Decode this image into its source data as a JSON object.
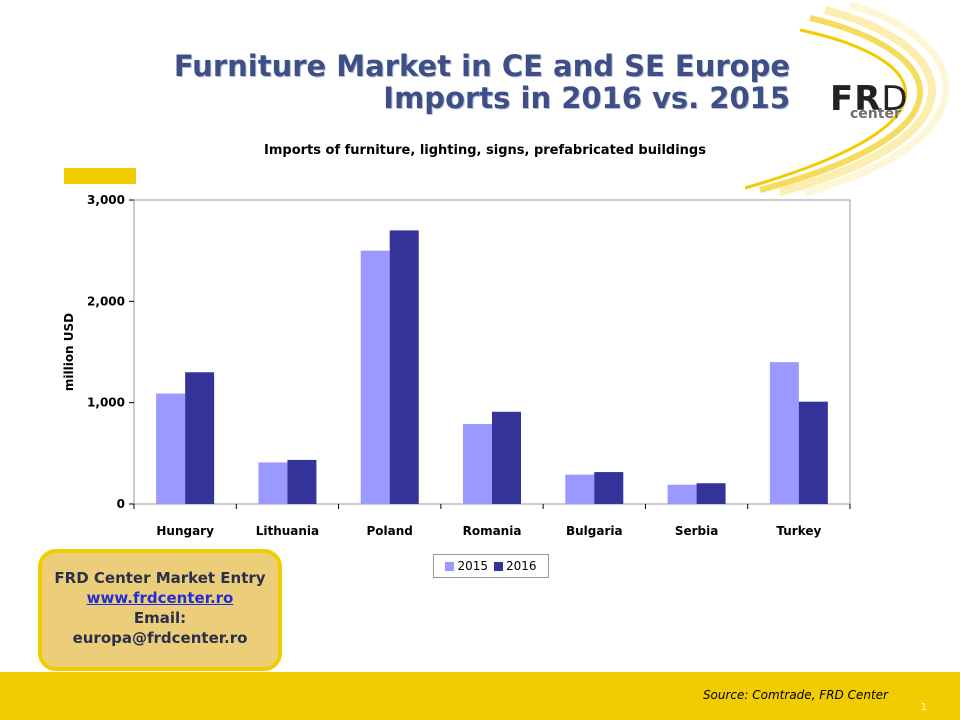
{
  "slide": {
    "title_line1": "Furniture Market in CE and SE Europe",
    "title_line2": "Imports in 2016 vs. 2015",
    "logo_text_f": "F",
    "logo_text_r": "R",
    "logo_text_d": "D",
    "logo_sub": "center",
    "page_number": "1"
  },
  "contact": {
    "company": "FRD Center Market Entry",
    "website": "www.frdcenter.ro",
    "email_label": "Email:",
    "email": "europa@frdcenter.ro"
  },
  "footer": {
    "source": "Source: Comtrade, FRD Center"
  },
  "colors": {
    "series_2015": "#9999ff",
    "series_2016": "#333399",
    "accent": "#f2cc00",
    "title": "#3d4f86"
  },
  "chart_data": {
    "type": "bar",
    "title": "Imports of furniture, lighting, signs, prefabricated buildings",
    "xlabel": "",
    "ylabel": "million USD",
    "ylim": [
      0,
      3000
    ],
    "yticks": [
      0,
      1000,
      2000,
      3000
    ],
    "ytick_labels": [
      "0",
      "1,000",
      "2,000",
      "3,000"
    ],
    "grid": false,
    "legend_position": "bottom",
    "categories": [
      "Hungary",
      "Lithuania",
      "Poland",
      "Romania",
      "Bulgaria",
      "Serbia",
      "Turkey"
    ],
    "series": [
      {
        "name": "2015",
        "values": [
          1090,
          410,
          2500,
          790,
          290,
          190,
          1400
        ]
      },
      {
        "name": "2016",
        "values": [
          1300,
          435,
          2700,
          910,
          315,
          205,
          1010
        ]
      }
    ]
  }
}
